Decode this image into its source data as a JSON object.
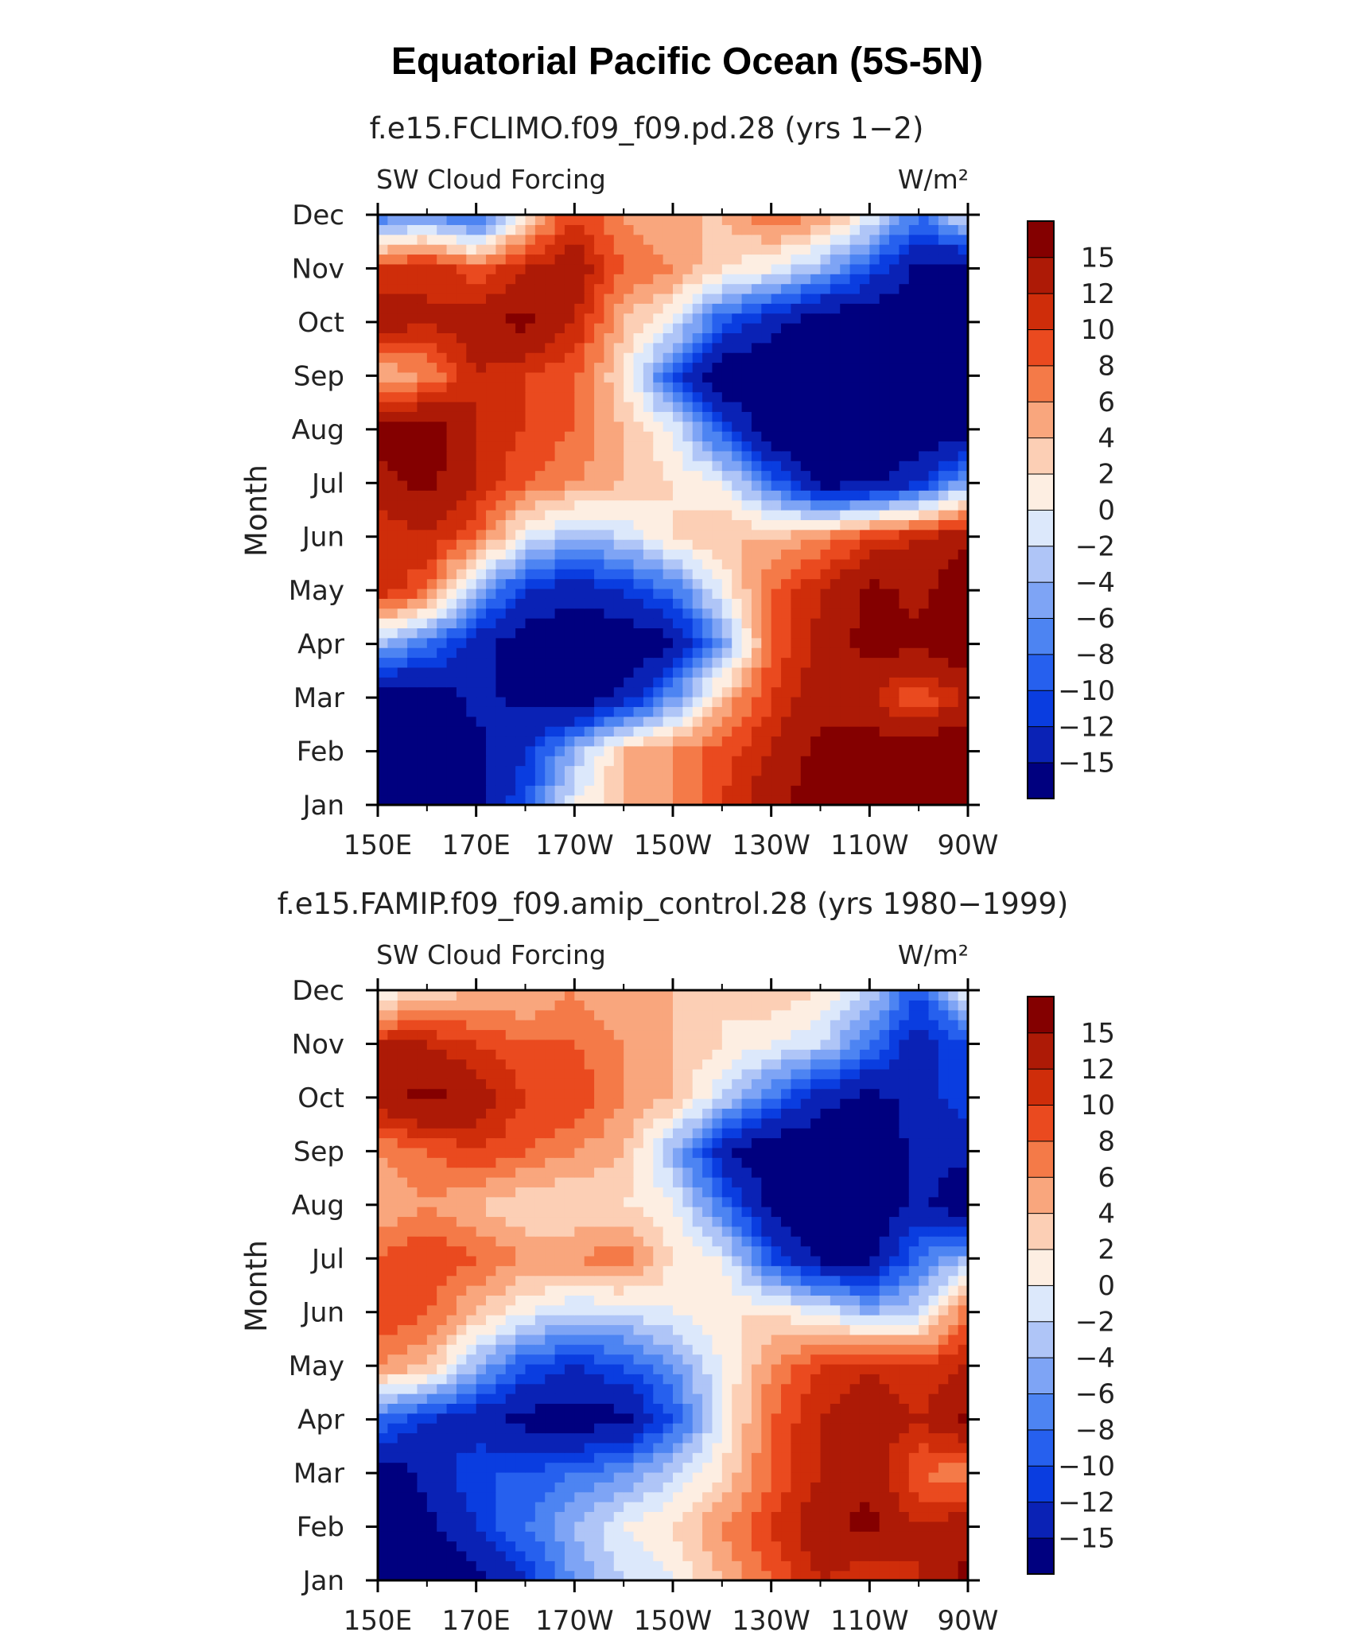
{
  "figure_title": "Equatorial Pacific Ocean (5S-5N)",
  "chart_data": [
    {
      "type": "heatmap",
      "title": "f.e15.FCLIMO.f09_f09.pd.28 (yrs 1−2)",
      "left_label": "SW Cloud Forcing",
      "right_label": "W/m²",
      "ylabel": "Month",
      "x_ticks": [
        "150E",
        "170E",
        "170W",
        "150W",
        "130W",
        "110W",
        "90W"
      ],
      "y_ticks": [
        "Jan",
        "Feb",
        "Mar",
        "Apr",
        "May",
        "Jun",
        "Jul",
        "Aug",
        "Sep",
        "Oct",
        "Nov",
        "Dec"
      ],
      "colorbar_levels": [
        "−15",
        "−12",
        "−10",
        "−8",
        "−6",
        "−4",
        "−2",
        "0",
        "2",
        "4",
        "6",
        "8",
        "10",
        "12",
        "15"
      ],
      "values": [
        [
          -18,
          -18,
          -16,
          -10,
          0,
          4,
          6,
          10,
          14,
          17,
          18,
          18,
          18
        ],
        [
          -18,
          -18,
          -16,
          -12,
          -4,
          4,
          6,
          9,
          12,
          16,
          17,
          18,
          18
        ],
        [
          -18,
          -17,
          -14,
          -16,
          -18,
          -14,
          -6,
          4,
          10,
          14,
          12,
          8,
          12
        ],
        [
          -4,
          -8,
          -14,
          -17,
          -18,
          -18,
          -16,
          -6,
          8,
          13,
          16,
          16,
          18
        ],
        [
          12,
          8,
          -4,
          -12,
          -14,
          -12,
          -8,
          0,
          8,
          12,
          16,
          14,
          18
        ],
        [
          10,
          12,
          8,
          0,
          -4,
          -2,
          2,
          4,
          4,
          6,
          10,
          12,
          14
        ],
        [
          14,
          16,
          12,
          8,
          6,
          4,
          2,
          0,
          -8,
          -16,
          -16,
          -12,
          -4
        ],
        [
          16,
          17,
          12,
          10,
          8,
          4,
          0,
          -10,
          -18,
          -18,
          -18,
          -18,
          -18
        ],
        [
          4,
          6,
          12,
          10,
          8,
          2,
          -10,
          -18,
          -18,
          -18,
          -18,
          -18,
          -18
        ],
        [
          14,
          12,
          14,
          16,
          12,
          4,
          0,
          -10,
          -14,
          -18,
          -18,
          -18,
          -18
        ],
        [
          10,
          12,
          8,
          12,
          14,
          8,
          6,
          2,
          0,
          -4,
          -10,
          -16,
          -18
        ],
        [
          -8,
          -6,
          -10,
          2,
          10,
          6,
          4,
          4,
          8,
          6,
          0,
          -8,
          0
        ]
      ]
    },
    {
      "type": "heatmap",
      "title": "f.e15.FAMIP.f09_f09.amip_control.28 (yrs 1980−1999)",
      "left_label": "SW Cloud Forcing",
      "right_label": "W/m²",
      "ylabel": "Month",
      "x_ticks": [
        "150E",
        "170E",
        "170W",
        "150W",
        "130W",
        "110W",
        "90W"
      ],
      "y_ticks": [
        "Jan",
        "Feb",
        "Mar",
        "Apr",
        "May",
        "Jun",
        "Jul",
        "Aug",
        "Sep",
        "Oct",
        "Nov",
        "Dec"
      ],
      "colorbar_levels": [
        "−15",
        "−12",
        "−10",
        "−8",
        "−6",
        "−4",
        "−2",
        "0",
        "2",
        "4",
        "6",
        "8",
        "10",
        "12",
        "15"
      ],
      "values": [
        [
          -18,
          -18,
          -16,
          -12,
          -6,
          -2,
          0,
          4,
          8,
          12,
          10,
          12,
          16
        ],
        [
          -18,
          -16,
          -12,
          -8,
          -4,
          0,
          2,
          6,
          10,
          14,
          16,
          12,
          14
        ],
        [
          -18,
          -14,
          -10,
          -10,
          -8,
          -6,
          -2,
          2,
          8,
          12,
          14,
          8,
          6
        ],
        [
          -8,
          -12,
          -14,
          -16,
          -17,
          -16,
          -10,
          0,
          8,
          12,
          14,
          12,
          16
        ],
        [
          6,
          4,
          -4,
          -10,
          -12,
          -10,
          -6,
          0,
          6,
          10,
          12,
          10,
          12
        ],
        [
          10,
          8,
          4,
          0,
          -2,
          -2,
          0,
          2,
          2,
          0,
          -4,
          -2,
          8
        ],
        [
          8,
          10,
          8,
          6,
          6,
          8,
          2,
          0,
          -10,
          -16,
          -16,
          -8,
          -4
        ],
        [
          4,
          6,
          4,
          2,
          2,
          2,
          0,
          -8,
          -16,
          -18,
          -18,
          -14,
          -18
        ],
        [
          6,
          8,
          10,
          8,
          6,
          4,
          -4,
          -14,
          -18,
          -18,
          -18,
          -14,
          -14
        ],
        [
          14,
          16,
          14,
          10,
          10,
          6,
          4,
          -2,
          -8,
          -14,
          -16,
          -14,
          -10
        ],
        [
          12,
          12,
          10,
          8,
          8,
          6,
          4,
          2,
          0,
          -2,
          -8,
          -14,
          -10
        ],
        [
          0,
          2,
          4,
          4,
          6,
          4,
          4,
          2,
          4,
          2,
          -2,
          -10,
          0
        ]
      ]
    }
  ]
}
